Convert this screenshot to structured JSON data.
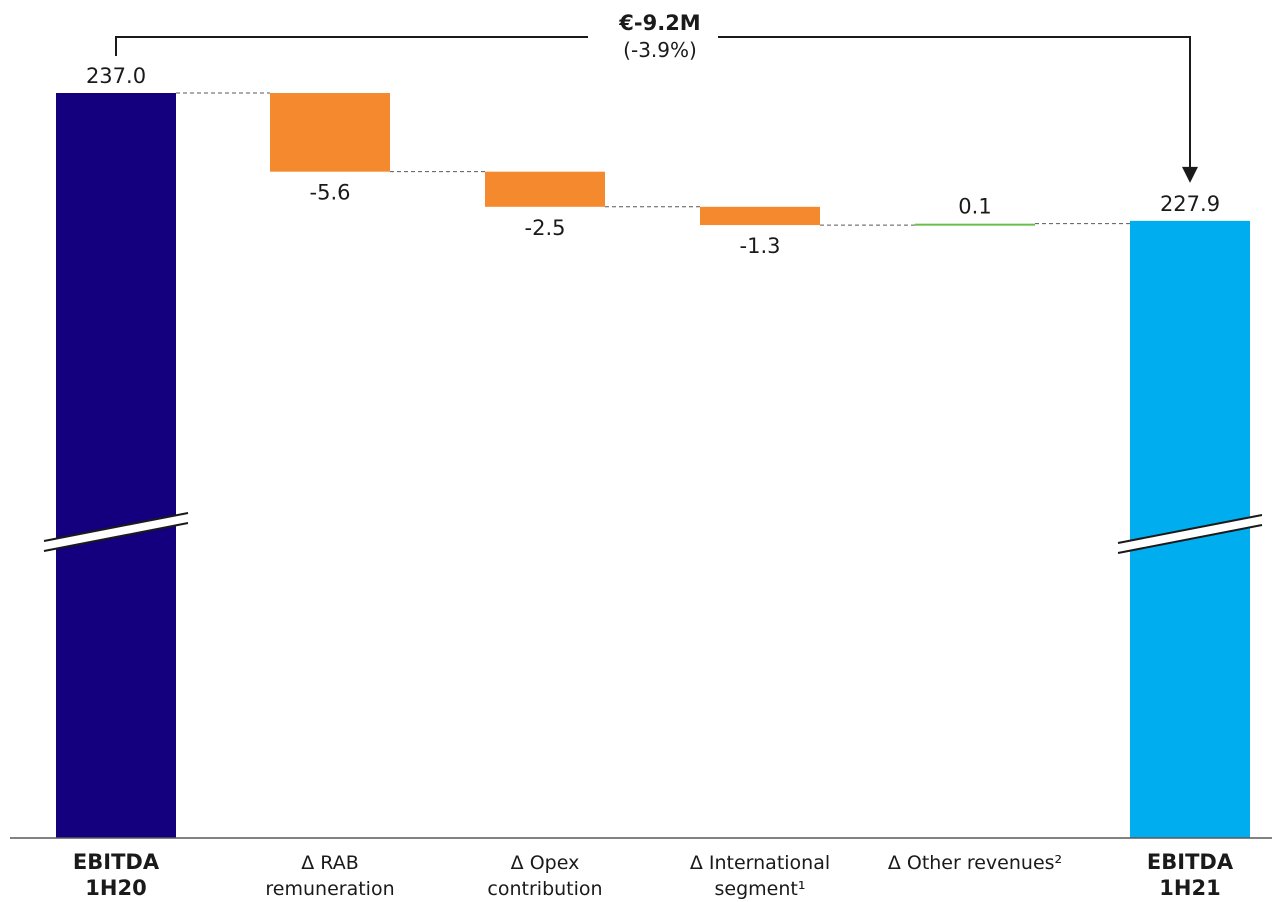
{
  "chart_data": {
    "type": "bar",
    "subtype": "waterfall",
    "categories": [
      "EBITDA 1H20",
      "Δ RAB remuneration",
      "Δ Opex contribution",
      "Δ International segment¹",
      "Δ Other revenues²",
      "EBITDA 1H21"
    ],
    "category_lines": [
      [
        "EBITDA",
        "1H20"
      ],
      [
        "Δ RAB",
        "remuneration"
      ],
      [
        "Δ Opex",
        "contribution"
      ],
      [
        "Δ International",
        "segment¹"
      ],
      [
        "Δ Other revenues²"
      ],
      [
        "EBITDA",
        "1H21"
      ]
    ],
    "category_bold": [
      true,
      false,
      false,
      false,
      false,
      true
    ],
    "values": [
      237.0,
      -5.6,
      -2.5,
      -1.3,
      0.1,
      227.9
    ],
    "value_labels": [
      "237.0",
      "-5.6",
      "-2.5",
      "-1.3",
      "0.1",
      "227.9"
    ],
    "kinds": [
      "total",
      "delta",
      "delta",
      "delta",
      "delta",
      "total"
    ],
    "axis_break": true,
    "grid": false,
    "total_change": {
      "label": "€-9.2M",
      "sublabel": "(-3.9%)"
    },
    "colors": {
      "start_total": "#14007f",
      "end_total": "#00aeef",
      "negative": "#f5892e",
      "positive": "#6abf4b",
      "connector": "#595959",
      "axis": "#595959",
      "arrow": "#1a1a1a"
    }
  }
}
